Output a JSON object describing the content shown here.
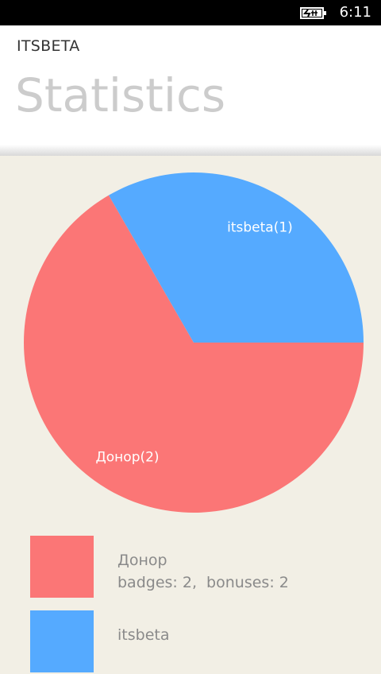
{
  "status_bar": {
    "time": "6:11",
    "battery_icon": "battery-charging-icon"
  },
  "header": {
    "app_name": "ITSBETA",
    "page_title": "Statistics"
  },
  "colors": {
    "donor": "#fb7676",
    "itsbeta": "#55aaff",
    "background": "#f2efe5"
  },
  "chart_data": {
    "type": "pie",
    "categories": [
      "Донор",
      "itsbeta"
    ],
    "values": [
      2,
      1
    ],
    "slice_labels": [
      "Донор(2)",
      "itsbeta(1)"
    ],
    "colors": [
      "#fb7676",
      "#55aaff"
    ]
  },
  "legend": {
    "items": [
      {
        "name": "Донор",
        "badges_label": "badges:",
        "badges": "2",
        "bonuses_label": "bonuses:",
        "bonuses": "2",
        "stats": "badges: 2,  bonuses: 2",
        "color": "#fb7676"
      },
      {
        "name": "itsbeta",
        "color": "#55aaff"
      }
    ]
  }
}
